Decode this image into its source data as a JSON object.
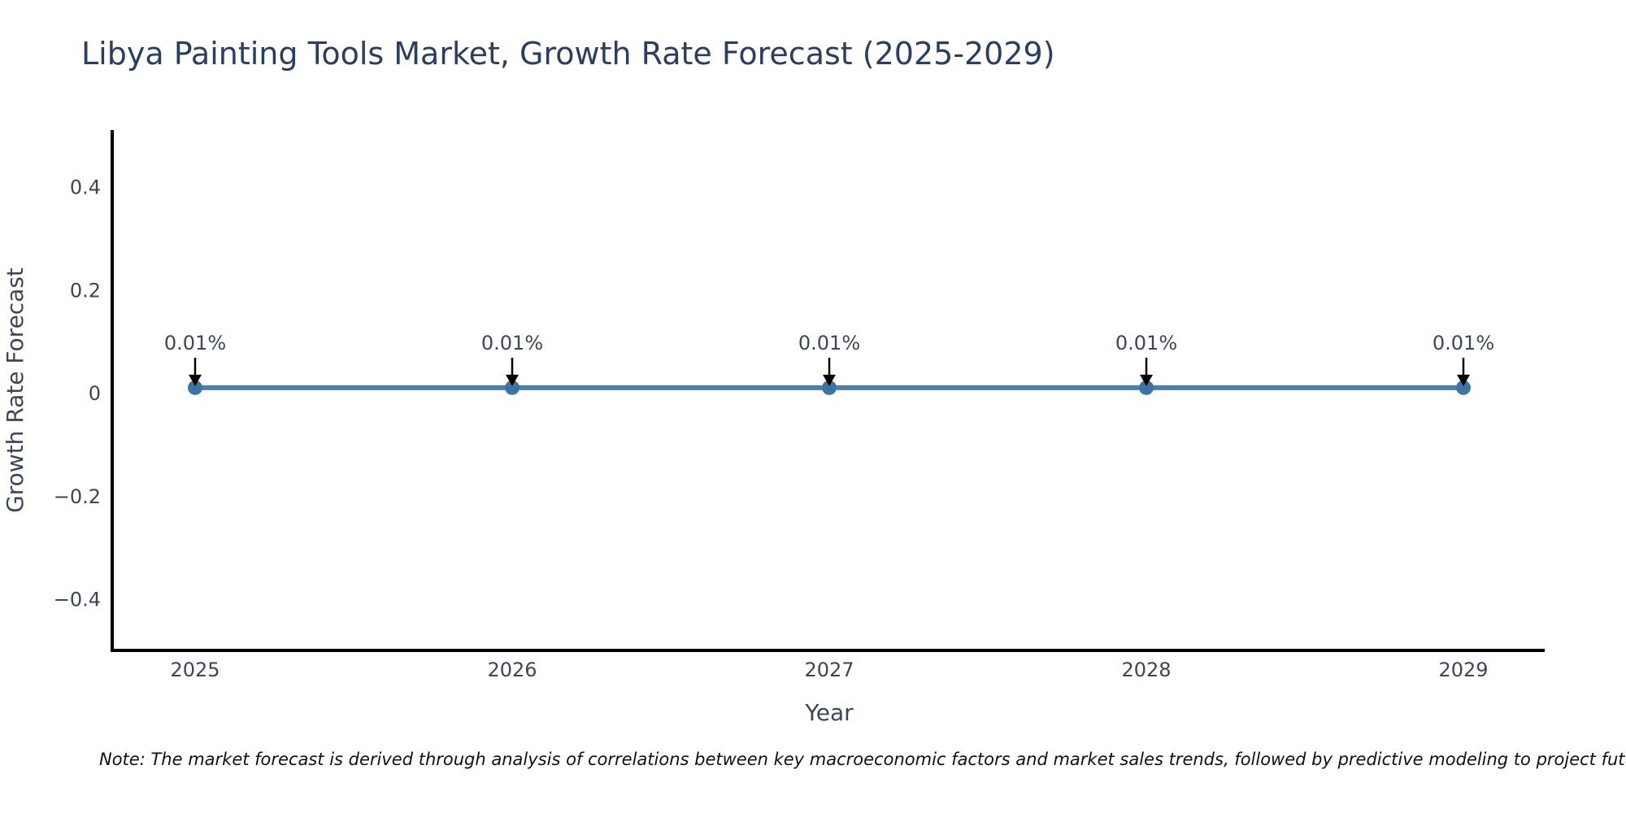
{
  "page": {
    "note": "Note: The market forecast is derived through analysis of correlations between key macroeconomic factors and market sales trends, followed by predictive modeling to project future sales."
  },
  "chart_data": {
    "type": "line",
    "title": "Libya Painting Tools Market, Growth Rate Forecast (2025-2029)",
    "xlabel": "Year",
    "ylabel": "Growth Rate Forecast",
    "categories": [
      "2025",
      "2026",
      "2027",
      "2028",
      "2029"
    ],
    "series": [
      {
        "name": "Growth Rate Forecast",
        "values": [
          0.01,
          0.01,
          0.01,
          0.01,
          0.01
        ]
      }
    ],
    "point_labels": [
      "0.01%",
      "0.01%",
      "0.01%",
      "0.01%",
      "0.01%"
    ],
    "ytick_values": [
      0.4,
      0.2,
      0,
      -0.2,
      -0.4
    ],
    "ytick_labels": [
      "0.4",
      "0.2",
      "0",
      "−0.2",
      "−0.4"
    ],
    "ylim": [
      -0.5,
      0.51
    ],
    "grid": false,
    "legend": "none",
    "annotation_style": "down-arrow",
    "colors": {
      "background": "#ffffff",
      "line": "#4d7ea8",
      "marker": "#3c74a6",
      "axis": "#000000",
      "arrow": "#000000",
      "title_text": "#2a3f5f",
      "tick_text": "#3b4759",
      "note_text": "#111111"
    }
  }
}
